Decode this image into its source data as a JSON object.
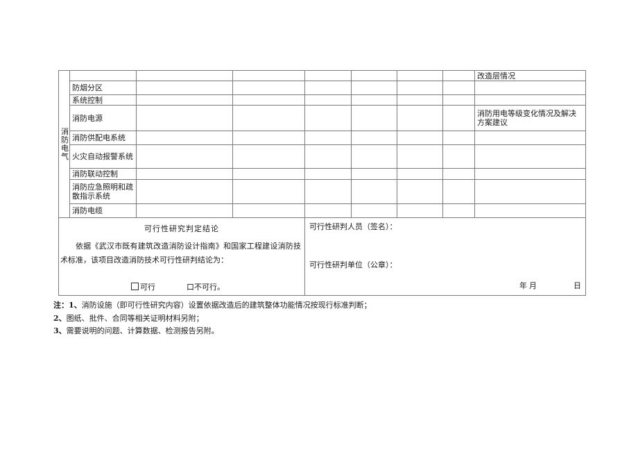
{
  "colors": {
    "ink": "#1b1b1b",
    "grid_line": "#7b7b7b",
    "paper": "#ffffff"
  },
  "table": {
    "section_label": "消防电气",
    "columns": 9,
    "rows": [
      {
        "item": "",
        "remark": "改造层情况"
      },
      {
        "item": "防烟分区",
        "remark": ""
      },
      {
        "item": "系统控制",
        "remark": ""
      },
      {
        "item": "消防电源",
        "remark": "消防用电等级变化情况及解决方案建议"
      },
      {
        "item": "消防供配电系统",
        "remark": ""
      },
      {
        "item": "火灾自动报警系统",
        "remark": ""
      },
      {
        "item": "消防联动控制",
        "remark": ""
      },
      {
        "item": "消防应急照明和疏散指示系统",
        "remark": ""
      },
      {
        "item": "消防电缆",
        "remark": ""
      }
    ]
  },
  "conclusion": {
    "title": "可行性研究判定结论",
    "body": "依据《武汉市既有建筑改造消防设计指南》和国家工程建设消防技术标准，该项目改造消防技术可行性研判结论为：",
    "option_feasible": "可行",
    "option_infeasible": "口不可行。",
    "signer_label": "可行性研判人员（签名）：",
    "unit_label": "可行性研判单位（公章）：",
    "date_year_month": "年月",
    "date_day": "日"
  },
  "notes": {
    "prefix": "注：",
    "items": [
      {
        "num": "1、",
        "text": "消防设施（即可行性研究内容）设置依据改造后的建筑整体功能情况按现行标准判断；"
      },
      {
        "num": "2、",
        "text": "图纸、批件、合同等相关证明材料另附；"
      },
      {
        "num": "3、",
        "text": "需要说明的问题、计算数据、检测报告另附。"
      }
    ]
  }
}
